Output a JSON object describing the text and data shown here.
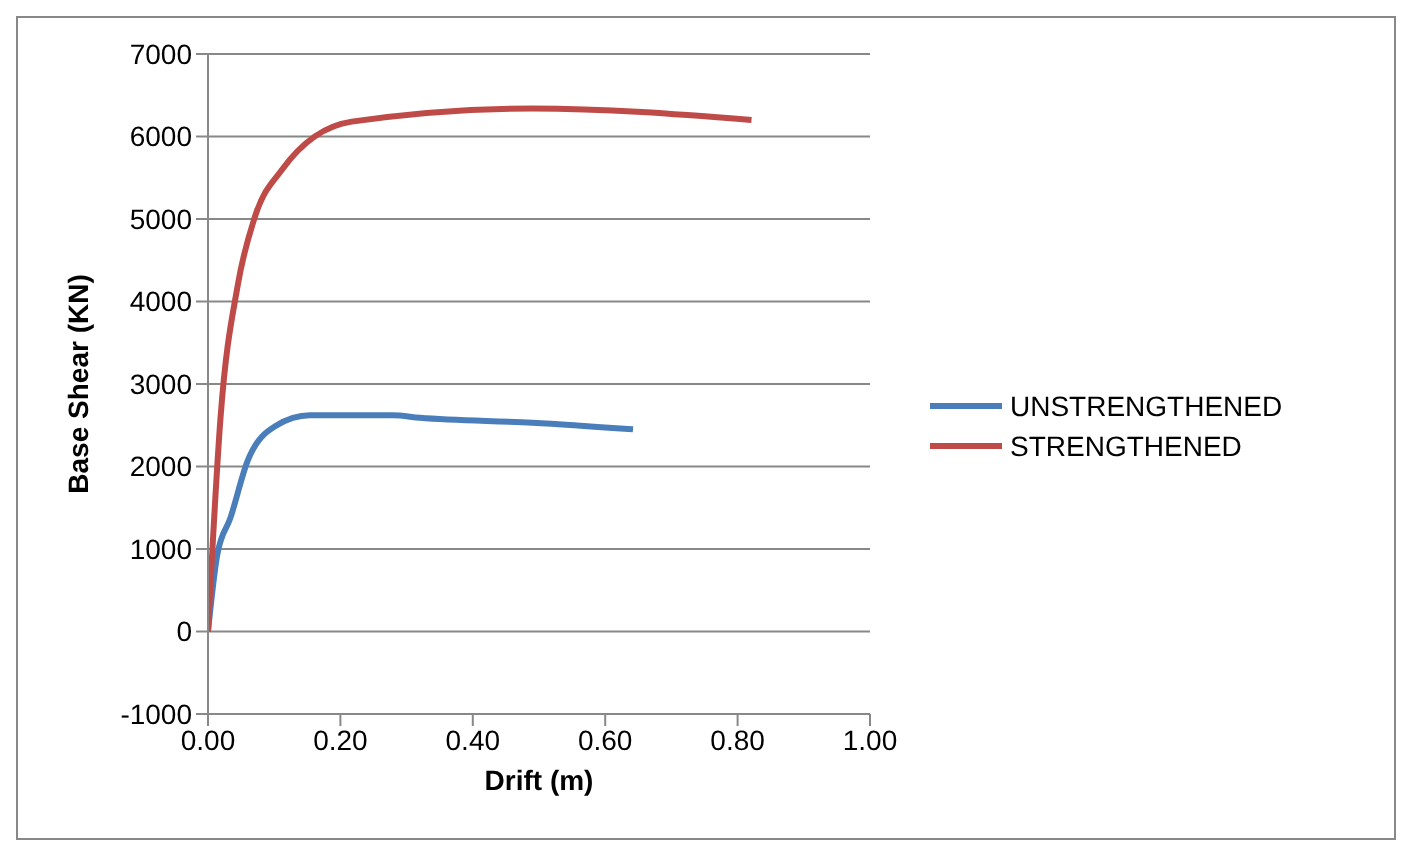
{
  "chart_data": {
    "type": "line",
    "xlabel": "Drift (m)",
    "ylabel": "Base Shear (KN)",
    "xlim": [
      0,
      1
    ],
    "xticks": [
      {
        "value": 0,
        "label": "0.00"
      },
      {
        "value": 0.2,
        "label": "0.20"
      },
      {
        "value": 0.4,
        "label": "0.40"
      },
      {
        "value": 0.6,
        "label": "0.60"
      },
      {
        "value": 0.8,
        "label": "0.80"
      },
      {
        "value": 1,
        "label": "1.00"
      }
    ],
    "ylim": [
      -1000,
      7000
    ],
    "yticks": [
      -1000,
      0,
      1000,
      2000,
      3000,
      4000,
      5000,
      6000,
      7000
    ],
    "grid": "y",
    "legend": "right",
    "marker": "none",
    "series": [
      {
        "name": "UNSTRENGTHENED",
        "color": "#4a7ebb",
        "x": [
          0,
          0.014,
          0.034,
          0.06,
          0.102,
          0.154,
          0.279,
          0.32,
          0.49,
          0.642
        ],
        "values": [
          0,
          930,
          1380,
          2070,
          2490,
          2620,
          2620,
          2590,
          2530,
          2450
        ]
      },
      {
        "name": "STRENGTHENED",
        "color": "#be4b48",
        "x": [
          0,
          0.019,
          0.045,
          0.071,
          0.112,
          0.217,
          0.49,
          0.821
        ],
        "values": [
          0,
          2600,
          4200,
          5030,
          5600,
          6180,
          6340,
          6200
        ]
      }
    ]
  }
}
